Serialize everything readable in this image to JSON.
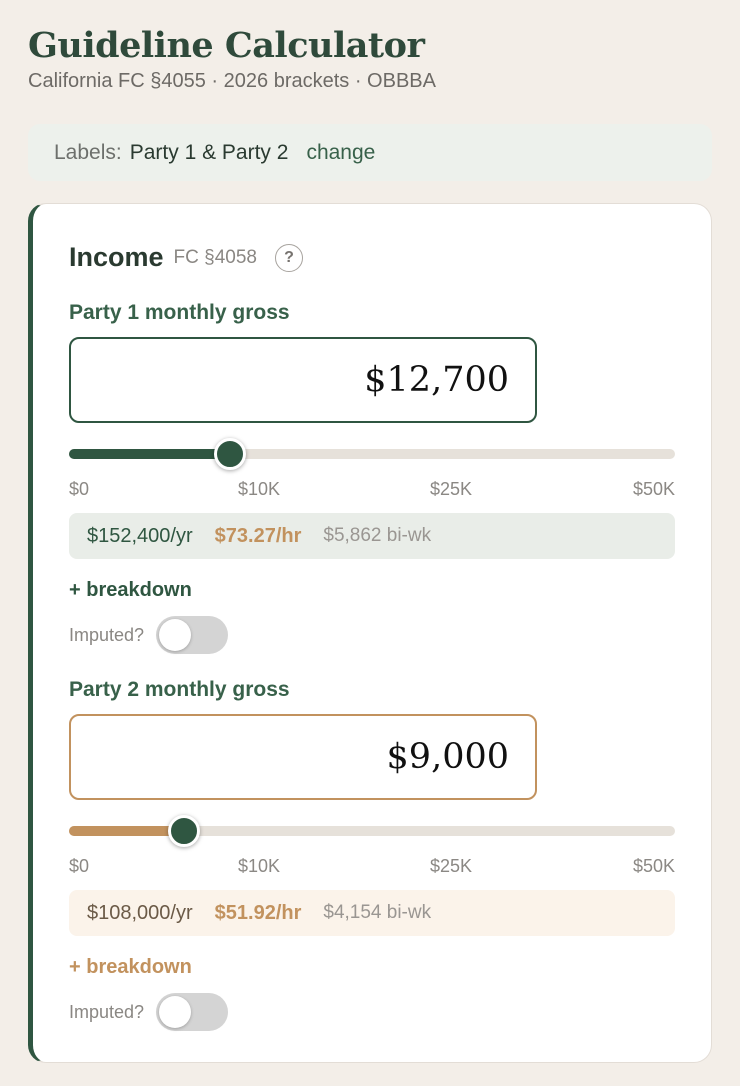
{
  "header": {
    "title": "Guideline Calculator",
    "subtitle": "California FC §4055 · 2026 brackets · OBBBA"
  },
  "labels_bar": {
    "prefix": "Labels:",
    "value": "Party 1 & Party 2",
    "change": "change"
  },
  "income": {
    "title": "Income",
    "ref": "FC §4058",
    "help_glyph": "?",
    "ticks": [
      "$0",
      "$10K",
      "$25K",
      "$50K"
    ],
    "party1": {
      "label": "Party 1 monthly gross",
      "amount": "$12,700",
      "slider_fraction": 0.265,
      "yearly": "$152,400/yr",
      "hourly": "$73.27/hr",
      "biweekly": "$5,862 bi-wk",
      "breakdown": "+ breakdown",
      "imputed_label": "Imputed?",
      "imputed_on": false,
      "accent": "#2f5641",
      "stats_bg": "#e9ede8",
      "yr_color": "#2f5641"
    },
    "party2": {
      "label": "Party 2 monthly gross",
      "amount": "$9,000",
      "slider_fraction": 0.19,
      "yearly": "$108,000/yr",
      "hourly": "$51.92/hr",
      "biweekly": "$4,154 bi-wk",
      "breakdown": "+ breakdown",
      "imputed_label": "Imputed?",
      "imputed_on": false,
      "accent": "#c2925e",
      "stats_bg": "#fbf3ea",
      "yr_color": "#6b5a47"
    }
  }
}
